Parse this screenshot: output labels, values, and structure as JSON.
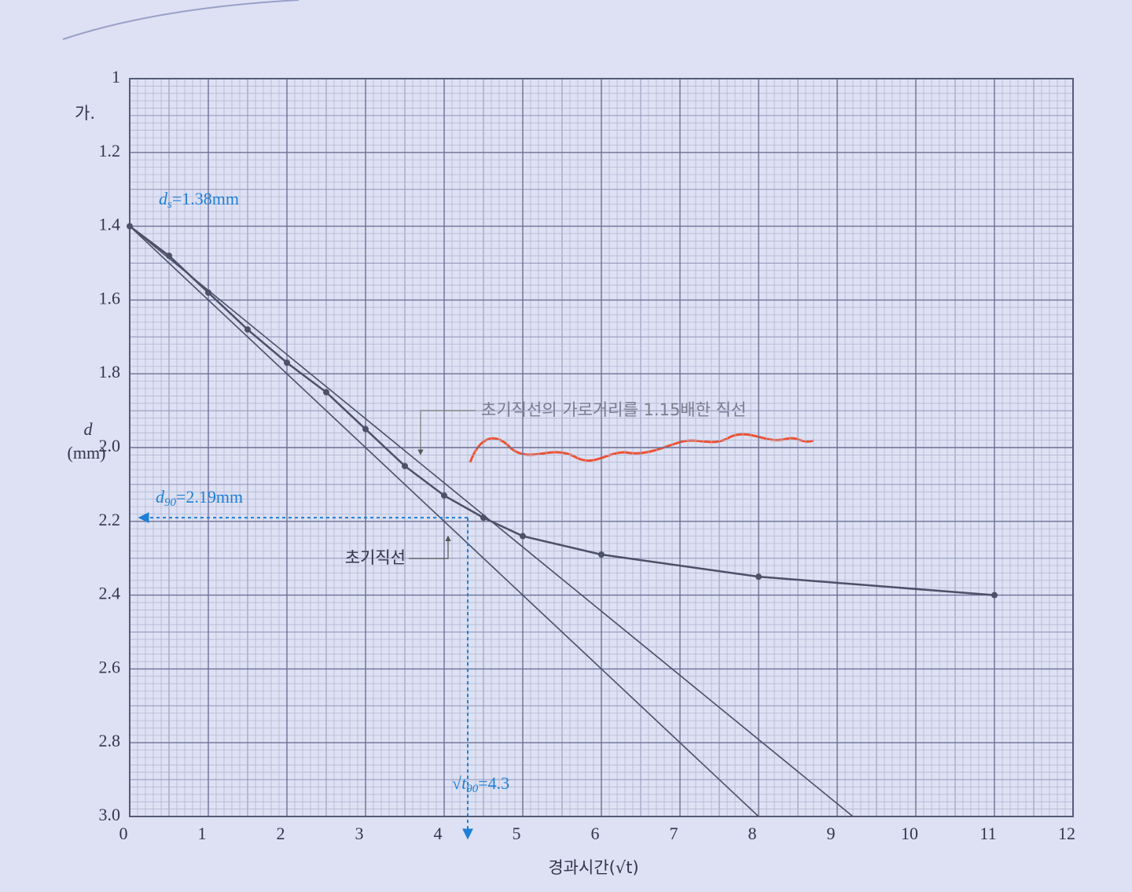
{
  "label": "가.",
  "chart_data": {
    "type": "line",
    "y_label": {
      "symbol": "d",
      "unit": "(mm)"
    },
    "x_label": "경과시간(√t)",
    "x": [
      0,
      0.5,
      1,
      1.5,
      2,
      2.5,
      3,
      3.5,
      4,
      4.5,
      5,
      6,
      8,
      11
    ],
    "series": [
      {
        "color": "#4c5068",
        "values": [
          1.4,
          1.48,
          1.58,
          1.68,
          1.77,
          1.85,
          1.95,
          2.05,
          2.13,
          2.19,
          2.24,
          2.29,
          2.35,
          2.4
        ]
      }
    ],
    "xlim": [
      0,
      12
    ],
    "xticks": [
      0,
      1,
      2,
      3,
      4,
      5,
      6,
      7,
      8,
      9,
      10,
      11,
      12
    ],
    "ylim": [
      1,
      3
    ],
    "y_inverted": true,
    "yticks": [
      1,
      1.2,
      1.4,
      1.6,
      1.8,
      {
        "value": 2,
        "label": "2.0"
      },
      2.2,
      2.4,
      2.6,
      2.8,
      {
        "value": 3,
        "label": "3.0"
      }
    ],
    "grid": true,
    "reference_lines": [
      {
        "name": "초기직선",
        "x": [
          0,
          8
        ],
        "y": [
          1.4,
          3
        ]
      },
      {
        "name": "초기직선의 가로거리를 1.15배한 직선",
        "x": [
          0,
          9.2
        ],
        "y": [
          1.4,
          3
        ]
      }
    ],
    "annotation_color": "#1f7fd6",
    "annotations": {
      "ds": {
        "symbol": "d",
        "sub": "s",
        "label": "=1.38mm"
      },
      "d90": {
        "symbol": "d",
        "sub": "90",
        "label": "=2.19mm",
        "value": 2.19
      },
      "t90": {
        "symbol": "√t",
        "sub": "90",
        "label": "=4.3",
        "value": 4.3
      }
    }
  }
}
